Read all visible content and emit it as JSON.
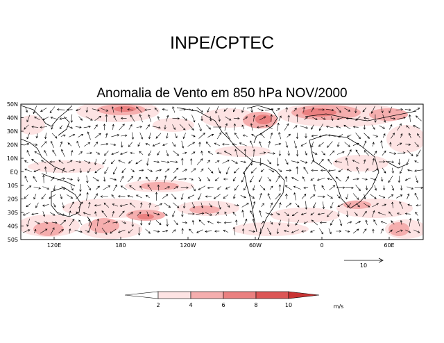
{
  "header": {
    "title": "INPE/CPTEC",
    "subtitle": "Anomalia de Vento em 850 hPa NOV/2000"
  },
  "map": {
    "lat_labels": [
      "50N",
      "40N",
      "30N",
      "20N",
      "10N",
      "EQ",
      "10S",
      "20S",
      "30S",
      "40S",
      "50S"
    ],
    "lon_labels": [
      "120E",
      "180",
      "120W",
      "60W",
      "0",
      "60E"
    ],
    "reference_vector": {
      "label": "10",
      "value": 10,
      "unit": "m/s"
    }
  },
  "colorbar": {
    "levels": [
      2,
      4,
      6,
      8,
      10
    ],
    "level_labels": [
      "2",
      "4",
      "6",
      "8",
      "10"
    ],
    "colors": [
      "#ffffff",
      "#fde3e3",
      "#f5aeae",
      "#ea8080",
      "#dc5656",
      "#c93434"
    ],
    "unit": "m/s"
  },
  "colors": {
    "coast": "#000000",
    "arrow": "#000000",
    "frame": "#000000"
  }
}
